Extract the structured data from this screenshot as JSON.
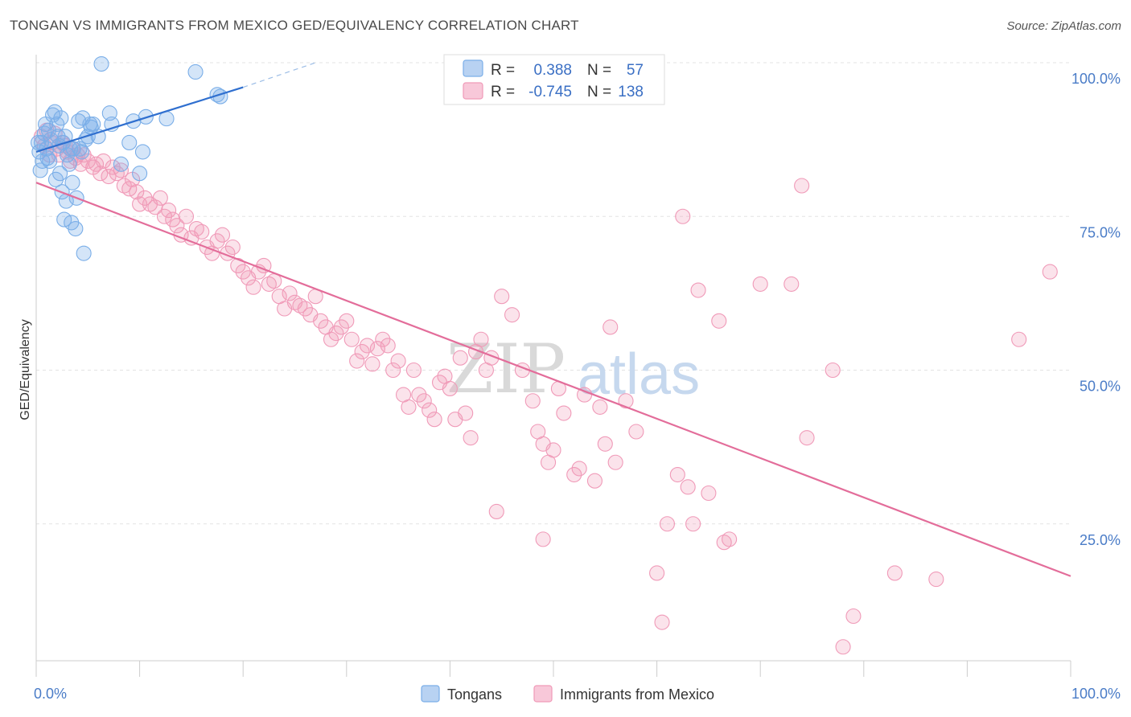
{
  "title": "TONGAN VS IMMIGRANTS FROM MEXICO GED/EQUIVALENCY CORRELATION CHART",
  "source": "Source: ZipAtlas.com",
  "watermark": {
    "zip": "ZIP",
    "atlas": "atlas"
  },
  "colors": {
    "blue": "#7aaee8",
    "blue_line": "#2f6fcf",
    "pink": "#f09ab8",
    "pink_line": "#e36d9a",
    "axis_text": "#4a7cc7"
  },
  "legend": {
    "rows": [
      {
        "r_label": "R =",
        "r_value": "0.388",
        "n_label": "N =",
        "n_value": "57"
      },
      {
        "r_label": "R =",
        "r_value": "-0.745",
        "n_label": "N =",
        "n_value": "138"
      }
    ]
  },
  "bottom_legend": [
    "Tongans",
    "Immigrants from Mexico"
  ],
  "chart_data": {
    "type": "scatter",
    "xlabel": "",
    "ylabel": "GED/Equivalency",
    "xlim": [
      0,
      100
    ],
    "ylim": [
      0,
      100
    ],
    "x_tick_labels": [
      "0.0%",
      "100.0%"
    ],
    "y_tick_labels": [
      "25.0%",
      "50.0%",
      "75.0%",
      "100.0%"
    ],
    "y_ticks": [
      25,
      50,
      75,
      100
    ],
    "grid": true,
    "legend_placement": "top-center",
    "series": [
      {
        "name": "Tongans",
        "r": 0.388,
        "n": 57,
        "trend": {
          "x0": 0,
          "y0": 85.5,
          "x1": 20,
          "y1": 96.0,
          "dash_to_x": 27,
          "dash_to_y": 100
        },
        "points": [
          [
            0.3,
            85.5
          ],
          [
            0.5,
            87
          ],
          [
            0.6,
            84
          ],
          [
            0.8,
            88.5
          ],
          [
            1,
            86
          ],
          [
            1.2,
            89
          ],
          [
            1.3,
            84
          ],
          [
            1.4,
            87.5
          ],
          [
            1.6,
            91.5
          ],
          [
            1.8,
            92
          ],
          [
            1.9,
            81
          ],
          [
            2,
            90
          ],
          [
            2.1,
            88
          ],
          [
            2.2,
            86.5
          ],
          [
            2.3,
            82
          ],
          [
            2.4,
            91
          ],
          [
            2.5,
            79
          ],
          [
            2.6,
            87
          ],
          [
            2.7,
            74.5
          ],
          [
            2.8,
            88
          ],
          [
            2.9,
            77.5
          ],
          [
            3,
            85
          ],
          [
            3.2,
            83.5
          ],
          [
            3.3,
            86
          ],
          [
            3.4,
            74
          ],
          [
            3.5,
            80.5
          ],
          [
            3.6,
            86
          ],
          [
            3.8,
            73
          ],
          [
            3.9,
            78
          ],
          [
            4.1,
            90.5
          ],
          [
            4.2,
            86
          ],
          [
            4.4,
            85.5
          ],
          [
            4.5,
            91
          ],
          [
            4.6,
            69
          ],
          [
            4.8,
            87.5
          ],
          [
            5.0,
            88
          ],
          [
            5.2,
            90
          ],
          [
            5.3,
            89.5
          ],
          [
            5.5,
            90
          ],
          [
            6.0,
            88
          ],
          [
            6.3,
            99.8
          ],
          [
            7.1,
            91.8
          ],
          [
            7.3,
            90
          ],
          [
            8.2,
            83.5
          ],
          [
            9.0,
            87
          ],
          [
            9.4,
            90.5
          ],
          [
            10.0,
            82
          ],
          [
            10.3,
            85.5
          ],
          [
            10.6,
            91.2
          ],
          [
            12.6,
            90.9
          ],
          [
            15.4,
            98.5
          ],
          [
            17.8,
            94.5
          ],
          [
            17.5,
            94.8
          ],
          [
            0.2,
            87
          ],
          [
            0.9,
            90
          ],
          [
            1.1,
            84.5
          ],
          [
            0.4,
            82.5
          ]
        ]
      },
      {
        "name": "Immigrants from Mexico",
        "r": -0.745,
        "n": 138,
        "trend": {
          "x0": 0,
          "y0": 80.5,
          "x1": 100,
          "y1": 16.5
        },
        "points": [
          [
            0.5,
            88
          ],
          [
            0.8,
            86.5
          ],
          [
            1,
            89
          ],
          [
            1.3,
            85
          ],
          [
            1.5,
            87
          ],
          [
            1.8,
            88.5
          ],
          [
            2,
            86
          ],
          [
            2.2,
            85
          ],
          [
            2.5,
            87
          ],
          [
            2.8,
            86.5
          ],
          [
            3,
            85.5
          ],
          [
            3.3,
            84
          ],
          [
            3.5,
            86
          ],
          [
            3.8,
            84.5
          ],
          [
            4,
            85
          ],
          [
            4.3,
            83.5
          ],
          [
            4.6,
            85
          ],
          [
            5,
            84
          ],
          [
            5.5,
            83
          ],
          [
            5.8,
            83.5
          ],
          [
            6.2,
            82
          ],
          [
            6.5,
            84
          ],
          [
            7,
            81.5
          ],
          [
            7.4,
            83
          ],
          [
            7.8,
            82
          ],
          [
            8.2,
            82.5
          ],
          [
            8.5,
            80
          ],
          [
            9,
            79.5
          ],
          [
            9.3,
            81
          ],
          [
            9.7,
            79
          ],
          [
            10,
            77
          ],
          [
            10.5,
            78
          ],
          [
            11,
            77
          ],
          [
            11.5,
            76.5
          ],
          [
            12,
            78
          ],
          [
            12.4,
            75
          ],
          [
            12.8,
            76
          ],
          [
            13.2,
            74.5
          ],
          [
            13.6,
            73.5
          ],
          [
            14,
            72
          ],
          [
            14.5,
            75
          ],
          [
            15,
            71.5
          ],
          [
            15.5,
            73
          ],
          [
            16,
            72.5
          ],
          [
            16.5,
            70
          ],
          [
            17,
            69
          ],
          [
            17.5,
            71
          ],
          [
            18,
            72
          ],
          [
            18.5,
            69
          ],
          [
            19,
            70
          ],
          [
            19.5,
            67
          ],
          [
            20,
            66
          ],
          [
            20.5,
            65
          ],
          [
            21,
            63.5
          ],
          [
            21.5,
            66
          ],
          [
            22,
            67
          ],
          [
            22.5,
            64
          ],
          [
            23,
            64.5
          ],
          [
            23.5,
            62
          ],
          [
            24,
            60
          ],
          [
            24.5,
            62.5
          ],
          [
            25,
            61
          ],
          [
            25.5,
            60.5
          ],
          [
            26,
            60
          ],
          [
            26.5,
            59
          ],
          [
            27,
            62
          ],
          [
            27.5,
            58
          ],
          [
            28,
            57
          ],
          [
            28.5,
            55
          ],
          [
            29,
            56
          ],
          [
            29.5,
            57
          ],
          [
            30,
            58
          ],
          [
            30.5,
            55
          ],
          [
            31,
            51.5
          ],
          [
            31.5,
            53
          ],
          [
            32,
            54
          ],
          [
            32.5,
            51
          ],
          [
            33,
            53.5
          ],
          [
            33.5,
            55
          ],
          [
            34,
            54
          ],
          [
            34.5,
            50
          ],
          [
            35,
            51.5
          ],
          [
            35.5,
            46
          ],
          [
            36,
            44
          ],
          [
            36.5,
            50
          ],
          [
            37,
            46
          ],
          [
            37.5,
            45
          ],
          [
            38,
            43.5
          ],
          [
            38.5,
            42
          ],
          [
            39,
            48
          ],
          [
            39.5,
            49
          ],
          [
            40,
            47
          ],
          [
            40.5,
            42
          ],
          [
            41,
            52
          ],
          [
            41.5,
            43
          ],
          [
            42,
            39
          ],
          [
            42.5,
            53
          ],
          [
            43,
            55
          ],
          [
            43.5,
            50
          ],
          [
            44,
            52
          ],
          [
            44.5,
            27
          ],
          [
            45,
            62
          ],
          [
            46,
            59
          ],
          [
            47,
            50
          ],
          [
            48,
            45
          ],
          [
            48.5,
            40
          ],
          [
            49,
            38
          ],
          [
            49.5,
            35
          ],
          [
            50,
            37
          ],
          [
            50.5,
            47
          ],
          [
            51,
            43
          ],
          [
            52,
            33
          ],
          [
            52.5,
            34
          ],
          [
            53,
            46
          ],
          [
            54,
            32
          ],
          [
            54.5,
            44
          ],
          [
            55,
            38
          ],
          [
            55.5,
            57
          ],
          [
            56,
            35
          ],
          [
            57,
            45
          ],
          [
            58,
            40
          ],
          [
            60,
            17
          ],
          [
            60.5,
            9
          ],
          [
            61,
            25
          ],
          [
            62,
            33
          ],
          [
            62.5,
            75
          ],
          [
            63,
            31
          ],
          [
            63.5,
            25
          ],
          [
            64,
            63
          ],
          [
            65,
            30
          ],
          [
            66,
            58
          ],
          [
            66.5,
            22
          ],
          [
            67,
            22.5
          ],
          [
            70,
            64
          ],
          [
            73,
            64
          ],
          [
            74.5,
            39
          ],
          [
            74,
            80
          ],
          [
            77,
            50
          ],
          [
            78,
            5
          ],
          [
            79,
            10
          ],
          [
            83,
            17
          ],
          [
            87,
            16
          ],
          [
            95,
            55
          ],
          [
            98,
            66
          ],
          [
            55.5,
            100
          ],
          [
            49,
            22.5
          ]
        ]
      }
    ]
  }
}
